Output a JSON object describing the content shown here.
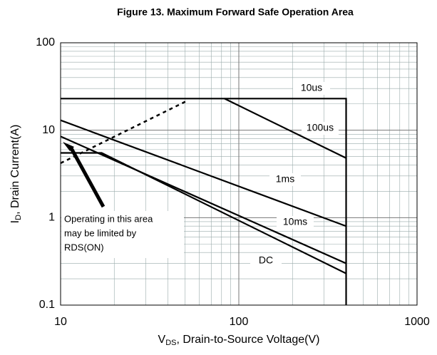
{
  "chart_data": {
    "type": "line",
    "title": "Figure 13. Maximum Forward Safe Operation Area",
    "ylabel": {
      "main": "I",
      "sub": "D",
      "rest": ", Drain Current(A)"
    },
    "xlabel": {
      "main": "V",
      "sub": "DS",
      "rest": ", Drain-to-Source Voltage(V)"
    },
    "log_x": true,
    "log_y": true,
    "grid": true,
    "xlim": [
      10,
      1000
    ],
    "xticks": [
      10,
      100,
      1000
    ],
    "ylim": [
      0.1,
      100
    ],
    "yticks": [
      0.1,
      1,
      10,
      100
    ],
    "series": [
      {
        "color": "#000000",
        "x": [
          10,
          400,
          400
        ],
        "values": [
          23,
          23,
          0.1
        ]
      },
      {
        "name": "10us",
        "color": "#000000",
        "x": [
          10,
          400
        ],
        "values": [
          23,
          23
        ]
      },
      {
        "name": "100us",
        "color": "#000000",
        "x": [
          83,
          400
        ],
        "values": [
          23,
          4.8
        ]
      },
      {
        "name": "1ms",
        "color": "#000000",
        "x": [
          10,
          400
        ],
        "values": [
          13,
          0.8
        ]
      },
      {
        "name": "10ms",
        "color": "#000000",
        "x": [
          10,
          400
        ],
        "values": [
          8.5,
          0.3
        ]
      },
      {
        "name": "DC",
        "color": "#000000",
        "x": [
          10,
          17,
          400
        ],
        "values": [
          5.5,
          5.5,
          0.23
        ]
      },
      {
        "color": "#000000",
        "dashed": true,
        "x": [
          10,
          52
        ],
        "values": [
          4.2,
          22
        ]
      }
    ],
    "annotation": [
      "Operating in this area",
      "may be limited by",
      "RDS(ON)"
    ]
  }
}
